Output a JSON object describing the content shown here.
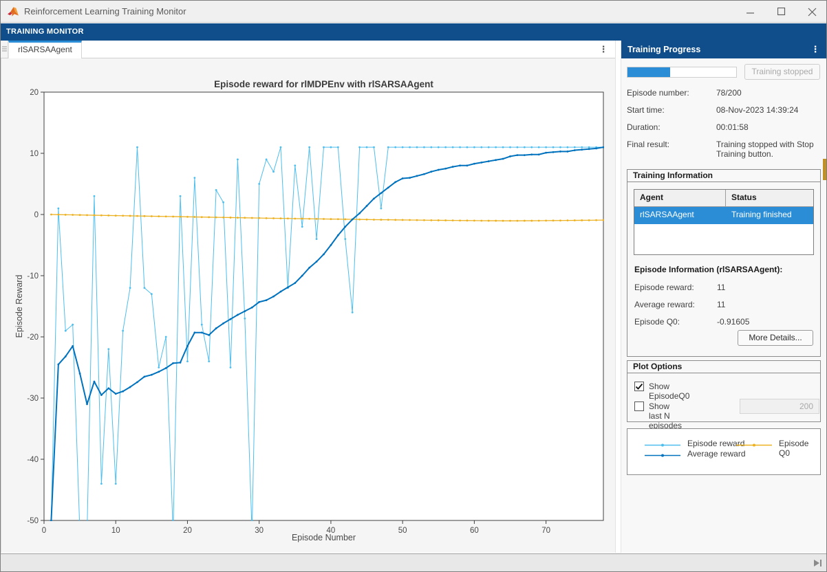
{
  "window": {
    "title": "Reinforcement Learning Training Monitor"
  },
  "ribbon": {
    "tab_label": "TRAINING MONITOR"
  },
  "doc_tabs": {
    "active": "rlSARSAAgent"
  },
  "panel": {
    "title": "Training Progress",
    "progress": {
      "percent": 39,
      "button_label": "Training stopped"
    },
    "fields": [
      {
        "label": "Episode number:",
        "value": "78/200"
      },
      {
        "label": "Start time:",
        "value": "08-Nov-2023 14:39:24"
      },
      {
        "label": "Duration:",
        "value": "00:01:58"
      },
      {
        "label": "Final result:",
        "value": "Training stopped with Stop Training button."
      }
    ],
    "training_information": {
      "title": "Training Information",
      "table": {
        "columns": [
          "Agent",
          "Status"
        ],
        "rows": [
          {
            "agent": "rlSARSAAgent",
            "status": "Training finished",
            "selected": true
          }
        ]
      },
      "episode_info_title": "Episode Information (rlSARSAAgent):",
      "fields": [
        {
          "label": "Episode reward:",
          "value": "11"
        },
        {
          "label": "Average reward:",
          "value": "11"
        },
        {
          "label": "Episode Q0:",
          "value": "-0.91605"
        }
      ],
      "more_details_label": "More Details..."
    },
    "plot_options": {
      "title": "Plot Options",
      "show_q0": {
        "label": "Show EpisodeQ0",
        "checked": true
      },
      "show_last_n": {
        "label": "Show last N episodes",
        "checked": false,
        "value": "200"
      }
    },
    "legend": [
      {
        "label": "Episode reward",
        "color": "#4DBEEE"
      },
      {
        "label": "Average reward",
        "color": "#0072BD"
      },
      {
        "label": "Episode Q0",
        "color": "#EDB120"
      }
    ]
  },
  "colors": {
    "ribbon_blue": "#0f4e8a",
    "accent_blue": "#2b8dd6",
    "episode_reward": "#4DBEEE",
    "average_reward": "#0072BD",
    "episode_q0": "#EDB120"
  },
  "chart_data": {
    "type": "line",
    "title": "Episode reward for rlMDPEnv with rlSARSAAgent",
    "xlabel": "Episode Number",
    "ylabel": "Episode Reward",
    "xlim": [
      0,
      78
    ],
    "ylim": [
      -50,
      20
    ],
    "xticks": [
      0,
      10,
      20,
      30,
      40,
      50,
      60,
      70
    ],
    "yticks": [
      20,
      10,
      0,
      -10,
      -20,
      -30,
      -40,
      -50
    ],
    "grid": false,
    "legend_position": "panel-bottom-right",
    "x_start": 1,
    "series": [
      {
        "name": "Episode reward",
        "color": "#4DBEEE",
        "line_width": 1,
        "values": [
          -50,
          1,
          -19,
          -18,
          -52,
          -52,
          3,
          -44,
          -22,
          -44,
          -19,
          -12,
          11,
          -12,
          -13,
          -25,
          -20,
          -52,
          3,
          -24,
          6,
          -18,
          -24,
          4,
          2,
          -25,
          9,
          -17,
          -52,
          5,
          9,
          7,
          11,
          -12,
          8,
          -2,
          11,
          -4,
          11,
          11,
          11,
          -4,
          -16,
          11,
          11,
          11,
          1,
          11,
          11,
          11,
          11,
          11,
          11,
          11,
          11,
          11,
          11,
          11,
          11,
          11,
          11,
          11,
          11,
          11,
          11,
          11,
          11,
          11,
          11,
          11,
          11,
          11,
          11,
          11,
          11,
          11,
          11,
          11
        ]
      },
      {
        "name": "Average reward",
        "color": "#0072BD",
        "line_width": 2,
        "values": [
          -50,
          -24.5,
          -23.2,
          -21.5,
          -26,
          -31,
          -27.3,
          -29.5,
          -28.4,
          -29.3,
          -28.9,
          -28.2,
          -27.4,
          -26.5,
          -26.2,
          -25.7,
          -25.1,
          -24.3,
          -24.2,
          -21.5,
          -19.3,
          -19.3,
          -19.7,
          -18.6,
          -17.8,
          -17.1,
          -16.4,
          -15.8,
          -15.2,
          -14.3,
          -14,
          -13.4,
          -12.6,
          -11.9,
          -11.2,
          -10,
          -8.7,
          -7.7,
          -6.5,
          -5,
          -3.4,
          -2,
          -0.8,
          0.2,
          1.4,
          2.6,
          3.5,
          4.4,
          5.3,
          5.9,
          6,
          6.3,
          6.6,
          7,
          7.3,
          7.5,
          7.8,
          8,
          8,
          8.3,
          8.5,
          8.7,
          8.9,
          9.1,
          9.5,
          9.7,
          9.7,
          9.8,
          9.8,
          10.1,
          10.2,
          10.3,
          10.3,
          10.5,
          10.6,
          10.7,
          10.8,
          11
        ]
      },
      {
        "name": "Episode Q0",
        "color": "#EDB120",
        "line_width": 1.3,
        "values": [
          0,
          -0.02,
          -0.04,
          -0.06,
          -0.08,
          -0.1,
          -0.12,
          -0.14,
          -0.16,
          -0.18,
          -0.2,
          -0.22,
          -0.24,
          -0.26,
          -0.28,
          -0.3,
          -0.32,
          -0.34,
          -0.36,
          -0.38,
          -0.4,
          -0.42,
          -0.44,
          -0.46,
          -0.48,
          -0.5,
          -0.52,
          -0.54,
          -0.56,
          -0.58,
          -0.6,
          -0.62,
          -0.63,
          -0.65,
          -0.67,
          -0.68,
          -0.7,
          -0.72,
          -0.73,
          -0.75,
          -0.76,
          -0.78,
          -0.79,
          -0.81,
          -0.82,
          -0.84,
          -0.85,
          -0.86,
          -0.88,
          -0.89,
          -0.9,
          -0.91,
          -0.93,
          -0.94,
          -0.95,
          -0.96,
          -0.97,
          -0.98,
          -0.99,
          -1,
          -1.01,
          -1.02,
          -1.02,
          -1.03,
          -1.03,
          -1.03,
          -1.02,
          -1.02,
          -1.01,
          -1,
          -0.99,
          -0.98,
          -0.97,
          -0.96,
          -0.95,
          -0.94,
          -0.93,
          -0.916
        ]
      }
    ]
  }
}
